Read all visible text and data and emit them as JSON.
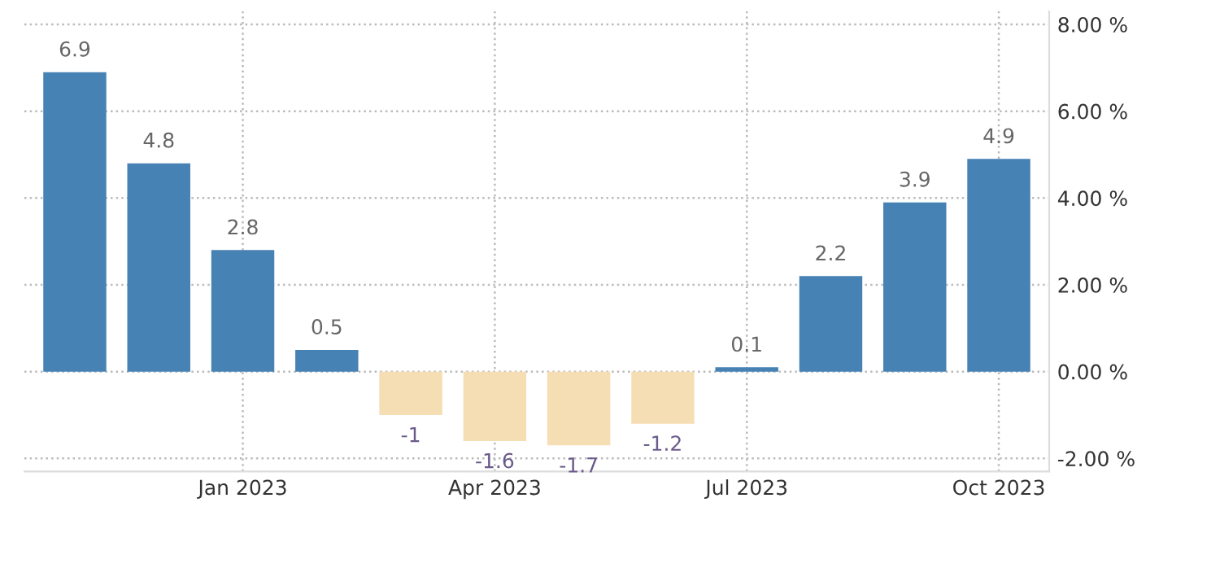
{
  "chart_data": {
    "type": "bar",
    "categories": [
      null,
      null,
      "Jan 2023",
      null,
      null,
      "Apr 2023",
      null,
      null,
      "Jul 2023",
      null,
      null,
      "Oct 2023"
    ],
    "values": [
      6.9,
      4.8,
      2.8,
      0.5,
      -1,
      -1.6,
      -1.7,
      -1.2,
      0.1,
      2.2,
      3.9,
      4.9
    ],
    "colors": [
      "#4682b4",
      "#4682b4",
      "#4682b4",
      "#4682b4",
      "#f5deb3",
      "#f5deb3",
      "#f5deb3",
      "#f5deb3",
      "#4682b4",
      "#4682b4",
      "#4682b4",
      "#4682b4"
    ],
    "ylim": [
      -2.3,
      8.3
    ],
    "yticks": [
      {
        "value": -2,
        "label": "-2.00 %"
      },
      {
        "value": 0,
        "label": "0.00 %"
      },
      {
        "value": 2,
        "label": "2.00 %"
      },
      {
        "value": 4,
        "label": "4.00 %"
      },
      {
        "value": 6,
        "label": "6.00 %"
      },
      {
        "value": 8,
        "label": "8.00 %"
      }
    ],
    "grid": true,
    "data_labels": true
  }
}
